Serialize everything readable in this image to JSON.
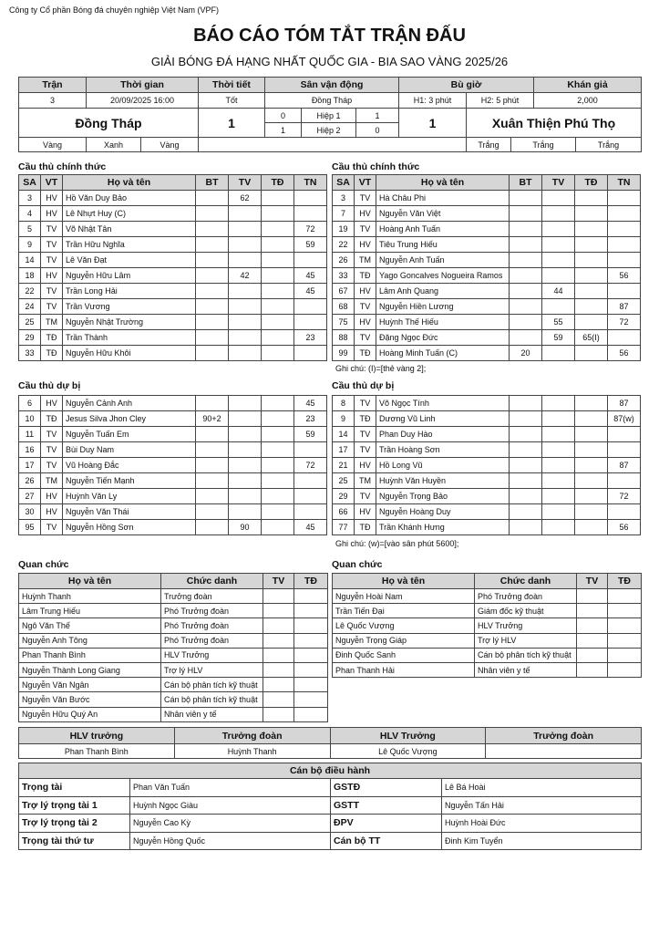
{
  "header": {
    "company": "Công ty Cổ phần Bóng đá chuyên nghiệp Việt Nam (VPF)",
    "title": "BÁO CÁO TÓM TẮT TRẬN ĐẤU",
    "subtitle": "GIẢI BÓNG ĐÁ HẠNG NHẤT QUỐC GIA - BIA SAO VÀNG 2025/26"
  },
  "match": {
    "headers": [
      "Trận",
      "Thời gian",
      "Thời tiết",
      "Sân vận động",
      "Bù giờ",
      "Khán giả"
    ],
    "values": [
      "3",
      "20/09/2025 16:00",
      "Tốt",
      "Đồng Tháp",
      "H1: 3 phút",
      "H2: 5 phút",
      "2,000"
    ]
  },
  "score": {
    "home_team": "Đồng Tháp",
    "home_score": "1",
    "halves": [
      [
        "0",
        "Hiệp 1",
        "1"
      ],
      [
        "1",
        "Hiệp 2",
        "0"
      ]
    ],
    "away_score": "1",
    "away_team": "Xuân Thiện Phú Thọ"
  },
  "colors": {
    "home": [
      "Vàng",
      "Xanh",
      "Vàng"
    ],
    "away": [
      "Trắng",
      "Trắng",
      "Trắng"
    ]
  },
  "player_headers": [
    "SA",
    "VT",
    "Họ và tên",
    "BT",
    "TV",
    "TĐ",
    "TN"
  ],
  "official_headers": [
    "Họ và tên",
    "Chức danh",
    "TV",
    "TĐ"
  ],
  "home": {
    "starters_title": "Cầu thủ chính thức",
    "starters": [
      [
        "3",
        "HV",
        "Hồ Văn Duy Bảo",
        null,
        "62",
        null,
        null
      ],
      [
        "4",
        "HV",
        "Lê Nhựt Huy (C)",
        null,
        null,
        null,
        null
      ],
      [
        "5",
        "TV",
        "Võ Nhật Tân",
        null,
        null,
        null,
        "72"
      ],
      [
        "9",
        "TV",
        "Trần Hữu Nghĩa",
        null,
        null,
        null,
        "59"
      ],
      [
        "14",
        "TV",
        "Lê Văn Đạt",
        null,
        null,
        null,
        null
      ],
      [
        "18",
        "HV",
        "Nguyễn Hữu Lâm",
        null,
        "42",
        null,
        "45"
      ],
      [
        "22",
        "TV",
        "Trần Long Hải",
        null,
        null,
        null,
        "45"
      ],
      [
        "24",
        "TV",
        "Trần Vương",
        null,
        null,
        null,
        null
      ],
      [
        "25",
        "TM",
        "Nguyễn Nhật Trường",
        null,
        null,
        null,
        null
      ],
      [
        "29",
        "TĐ",
        "Trần Thành",
        null,
        null,
        null,
        "23"
      ],
      [
        "33",
        "TĐ",
        "Nguyễn Hữu Khôi",
        null,
        null,
        null,
        null
      ]
    ],
    "subs_title": "Cầu thủ dự bị",
    "subs": [
      [
        "6",
        "HV",
        "Nguyễn Cảnh Anh",
        null,
        null,
        null,
        "45"
      ],
      [
        "10",
        "TĐ",
        "Jesus Silva Jhon Cley",
        "90+2",
        null,
        null,
        "23"
      ],
      [
        "11",
        "TV",
        "Nguyễn Tuấn Em",
        null,
        null,
        null,
        "59"
      ],
      [
        "16",
        "TV",
        "Bùi Duy Nam",
        null,
        null,
        null,
        null
      ],
      [
        "17",
        "TV",
        "Vũ Hoàng Đắc",
        null,
        null,
        null,
        "72"
      ],
      [
        "26",
        "TM",
        "Nguyễn Tiến Mạnh",
        null,
        null,
        null,
        null
      ],
      [
        "27",
        "HV",
        "Huỳnh Văn Ly",
        null,
        null,
        null,
        null
      ],
      [
        "30",
        "HV",
        "Nguyễn Văn Thái",
        null,
        null,
        null,
        null
      ],
      [
        "95",
        "TV",
        "Nguyễn Hồng Sơn",
        null,
        "90",
        null,
        "45"
      ]
    ],
    "officials_title": "Quan chức",
    "officials": [
      [
        "Huỳnh Thanh",
        "Trưởng đoàn"
      ],
      [
        "Lâm Trung Hiếu",
        "Phó Trưởng đoàn"
      ],
      [
        "Ngô Văn Thế",
        "Phó Trưởng đoàn"
      ],
      [
        "Nguyễn Anh Tông",
        "Phó Trưởng đoàn"
      ],
      [
        "Phan Thanh Bình",
        "HLV Trưởng"
      ],
      [
        "Nguyễn Thành Long Giang",
        "Trợ lý HLV"
      ],
      [
        "Nguyễn Văn Ngân",
        "Cán bộ phân tích kỹ thuật"
      ],
      [
        "Nguyễn Văn Bước",
        "Cán bộ phân tích kỹ thuật"
      ],
      [
        "Nguyễn Hữu Quý An",
        "Nhân viên y tế"
      ]
    ]
  },
  "away": {
    "starters_title": "Cầu thủ chính thức",
    "starters": [
      [
        "3",
        "TV",
        "Hà Châu Phi",
        null,
        null,
        null,
        null
      ],
      [
        "7",
        "HV",
        "Nguyễn Văn Việt",
        null,
        null,
        null,
        null
      ],
      [
        "19",
        "TV",
        "Hoàng Anh Tuấn",
        null,
        null,
        null,
        null
      ],
      [
        "22",
        "HV",
        "Tiêu Trung Hiếu",
        null,
        null,
        null,
        null
      ],
      [
        "26",
        "TM",
        "Nguyễn Anh Tuấn",
        null,
        null,
        null,
        null
      ],
      [
        "33",
        "TĐ",
        "Yago Goncalves Nogueira Ramos",
        null,
        null,
        null,
        "56"
      ],
      [
        "67",
        "HV",
        "Lâm Anh Quang",
        null,
        "44",
        null,
        null
      ],
      [
        "68",
        "TV",
        "Nguyễn Hiền Lương",
        null,
        null,
        null,
        "87"
      ],
      [
        "75",
        "HV",
        "Huỳnh Thế Hiếu",
        null,
        "55",
        null,
        "72"
      ],
      [
        "88",
        "TV",
        "Đặng Ngọc Đức",
        null,
        "59",
        "65(I)",
        null
      ],
      [
        "99",
        "TĐ",
        "Hoàng Minh Tuấn (C)",
        "20",
        null,
        null,
        "56"
      ]
    ],
    "starters_note": "Ghi chú: (I)=[thẻ vàng 2];",
    "subs_title": "Cầu thủ dự bị",
    "subs": [
      [
        "8",
        "TV",
        "Võ Ngọc Tính",
        null,
        null,
        null,
        "87"
      ],
      [
        "9",
        "TĐ",
        "Dương Vũ Linh",
        null,
        null,
        null,
        "87(w)"
      ],
      [
        "14",
        "TV",
        "Phan Duy Hào",
        null,
        null,
        null,
        null
      ],
      [
        "17",
        "TV",
        "Trần Hoàng Sơn",
        null,
        null,
        null,
        null
      ],
      [
        "21",
        "HV",
        "Hồ Long Vũ",
        null,
        null,
        null,
        "87"
      ],
      [
        "25",
        "TM",
        "Huỳnh Văn Huyền",
        null,
        null,
        null,
        null
      ],
      [
        "29",
        "TV",
        "Nguyễn Trọng Bảo",
        null,
        null,
        null,
        "72"
      ],
      [
        "66",
        "HV",
        "Nguyễn Hoàng Duy",
        null,
        null,
        null,
        null
      ],
      [
        "77",
        "TĐ",
        "Trần Khánh Hưng",
        null,
        null,
        null,
        "56"
      ]
    ],
    "subs_note": "Ghi chú: (w)=[vào sân phút 5600];",
    "officials_title": "Quan chức",
    "officials": [
      [
        "Nguyễn Hoài Nam",
        "Phó Trưởng đoàn"
      ],
      [
        "Trần Tiến Đại",
        "Giám đốc kỹ thuật"
      ],
      [
        "Lê Quốc Vượng",
        "HLV Trưởng"
      ],
      [
        "Nguyễn Trọng Giáp",
        "Trợ lý HLV"
      ],
      [
        "Đinh Quốc Sanh",
        "Cán bộ phân tích kỹ thuật"
      ],
      [
        "Phan Thanh Hải",
        "Nhân viên y tế"
      ]
    ]
  },
  "coaches": {
    "headers": [
      "HLV trưởng",
      "Trưởng đoàn",
      "HLV Trưởng",
      "Trưởng đoàn"
    ],
    "values": [
      "Phan Thanh Bình",
      "Huỳnh Thanh",
      "Lê Quốc Vượng",
      null
    ]
  },
  "match_officials": {
    "title": "Cán bộ điều hành",
    "rows": [
      [
        "Trọng tài",
        "Phan Văn Tuấn",
        "GSTĐ",
        "Lê Bá Hoài"
      ],
      [
        "Trợ lý trọng tài 1",
        "Huỳnh Ngọc Giàu",
        "GSTT",
        "Nguyễn Tấn Hải"
      ],
      [
        "Trợ lý trọng tài 2",
        "Nguyễn Cao Kỳ",
        "ĐPV",
        "Huỳnh Hoài Đức"
      ],
      [
        "Trọng tài thứ tư",
        "Nguyễn Hồng Quốc",
        "Cán bộ TT",
        "Đinh Kim Tuyển"
      ]
    ]
  }
}
